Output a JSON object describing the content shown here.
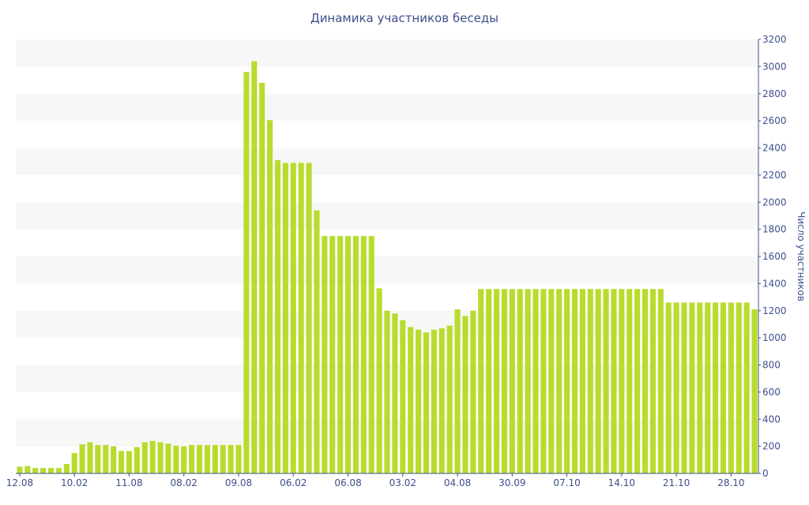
{
  "chart_data": {
    "type": "bar",
    "title": "Динамика участников беседы",
    "xlabel": "",
    "ylabel": "Число участников",
    "ylim": [
      0,
      3200
    ],
    "yticks": [
      0,
      200,
      400,
      600,
      800,
      1000,
      1200,
      1400,
      1600,
      1800,
      2000,
      2200,
      2400,
      2600,
      2800,
      3000,
      3200
    ],
    "y_axis_position": "right",
    "grid": "alternating horizontal bands",
    "legend": "none",
    "bar_color": "#b8dc2e",
    "x_tick_labels": [
      {
        "index": 0,
        "label": "12.08"
      },
      {
        "index": 7,
        "label": "10.02"
      },
      {
        "index": 14,
        "label": "11.08"
      },
      {
        "index": 21,
        "label": "08.02"
      },
      {
        "index": 28,
        "label": "09.08"
      },
      {
        "index": 35,
        "label": "06.02"
      },
      {
        "index": 42,
        "label": "06.08"
      },
      {
        "index": 49,
        "label": "03.02"
      },
      {
        "index": 56,
        "label": "04.08"
      },
      {
        "index": 63,
        "label": "30.09"
      },
      {
        "index": 70,
        "label": "07.10"
      },
      {
        "index": 77,
        "label": "14.10"
      },
      {
        "index": 84,
        "label": "21.10"
      },
      {
        "index": 91,
        "label": "28.10"
      }
    ],
    "values": [
      50,
      55,
      40,
      40,
      40,
      40,
      70,
      150,
      215,
      230,
      210,
      210,
      200,
      165,
      165,
      195,
      230,
      240,
      230,
      220,
      205,
      200,
      210,
      210,
      210,
      210,
      210,
      210,
      210,
      2960,
      3040,
      2880,
      2605,
      2310,
      2290,
      2290,
      2290,
      2290,
      1940,
      1750,
      1750,
      1750,
      1750,
      1750,
      1750,
      1750,
      1365,
      1200,
      1180,
      1130,
      1080,
      1060,
      1040,
      1060,
      1070,
      1090,
      1210,
      1160,
      1200,
      1360,
      1360,
      1360,
      1360,
      1360,
      1360,
      1360,
      1360,
      1360,
      1360,
      1360,
      1360,
      1360,
      1360,
      1360,
      1360,
      1360,
      1360,
      1360,
      1360,
      1360,
      1360,
      1360,
      1360,
      1260,
      1260,
      1260,
      1260,
      1260,
      1260,
      1260,
      1260,
      1260,
      1260,
      1260,
      1210
    ]
  }
}
